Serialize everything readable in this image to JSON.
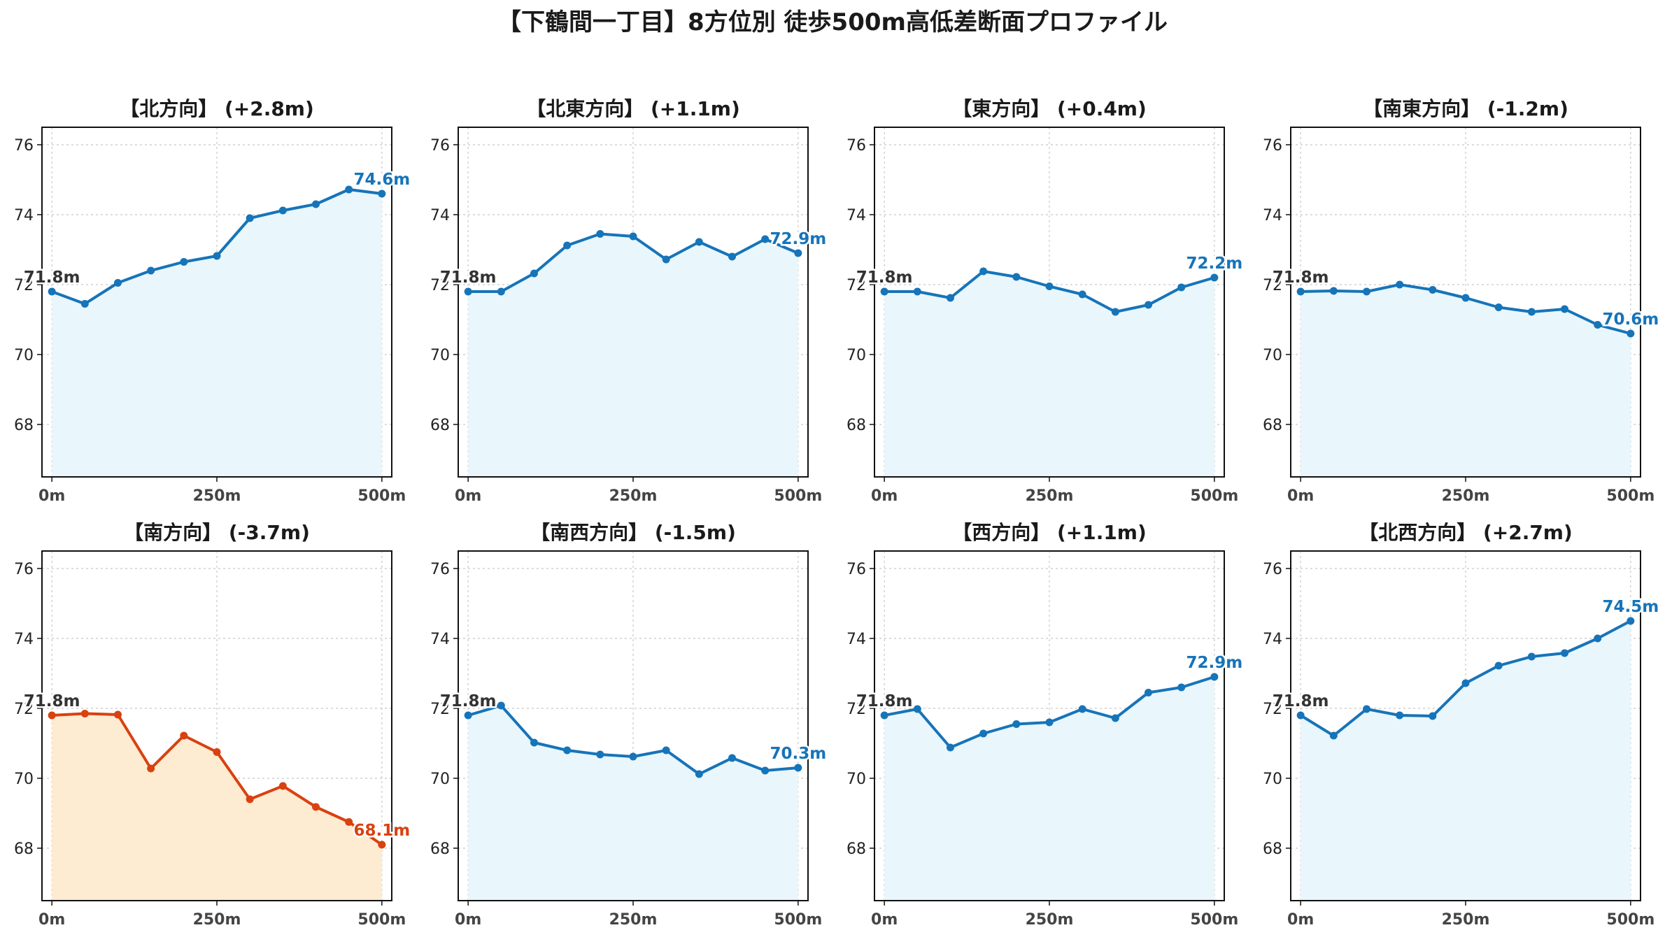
{
  "title": "【下鶴間一丁目】8方位別 徒歩500m高低差断面プロファイル",
  "colors": {
    "up_line": "#1674b9",
    "up_fill": "#e9f6fc",
    "down_line": "#d9410f",
    "down_fill": "#fdebd2",
    "start_label": "#333333",
    "grid": "#c8c8c8"
  },
  "chart_data": {
    "type": "area",
    "layout": "2 rows x 4 columns",
    "grid": true,
    "ylim": [
      66.5,
      76.5
    ],
    "yticks": [
      68,
      70,
      72,
      74,
      76
    ],
    "xlim": [
      -15,
      515
    ],
    "xticks": [
      0,
      250,
      500
    ],
    "xtick_labels": [
      "0m",
      "250m",
      "500m"
    ],
    "x": [
      0,
      50,
      100,
      150,
      200,
      250,
      300,
      350,
      400,
      450,
      500
    ],
    "panels": [
      {
        "title": "【北方向】 (+2.8m)",
        "values": [
          71.8,
          71.45,
          72.05,
          72.4,
          72.65,
          72.82,
          73.9,
          74.12,
          74.3,
          74.72,
          74.6
        ],
        "start_label": "71.8m",
        "end_label": "74.6m",
        "highlight": false
      },
      {
        "title": "【北東方向】 (+1.1m)",
        "values": [
          71.8,
          71.8,
          72.32,
          73.12,
          73.45,
          73.38,
          72.72,
          73.22,
          72.8,
          73.3,
          72.9
        ],
        "start_label": "71.8m",
        "end_label": "72.9m",
        "highlight": false
      },
      {
        "title": "【東方向】 (+0.4m)",
        "values": [
          71.8,
          71.8,
          71.62,
          72.38,
          72.22,
          71.95,
          71.72,
          71.22,
          71.42,
          71.92,
          72.2
        ],
        "start_label": "71.8m",
        "end_label": "72.2m",
        "highlight": false
      },
      {
        "title": "【南東方向】 (-1.2m)",
        "values": [
          71.8,
          71.82,
          71.8,
          72.0,
          71.85,
          71.62,
          71.35,
          71.22,
          71.3,
          70.85,
          70.6
        ],
        "start_label": "71.8m",
        "end_label": "70.6m",
        "highlight": false
      },
      {
        "title": "【南方向】 (-3.7m)",
        "values": [
          71.8,
          71.85,
          71.82,
          70.28,
          71.22,
          70.75,
          69.4,
          69.78,
          69.18,
          68.75,
          68.1
        ],
        "start_label": "71.8m",
        "end_label": "68.1m",
        "highlight": true
      },
      {
        "title": "【南西方向】 (-1.5m)",
        "values": [
          71.8,
          72.08,
          71.02,
          70.8,
          70.68,
          70.62,
          70.8,
          70.12,
          70.58,
          70.22,
          70.3
        ],
        "start_label": "71.8m",
        "end_label": "70.3m",
        "highlight": false
      },
      {
        "title": "【西方向】 (+1.1m)",
        "values": [
          71.8,
          71.98,
          70.88,
          71.28,
          71.55,
          71.6,
          71.98,
          71.72,
          72.45,
          72.6,
          72.9
        ],
        "start_label": "71.8m",
        "end_label": "72.9m",
        "highlight": false
      },
      {
        "title": "【北西方向】 (+2.7m)",
        "values": [
          71.8,
          71.22,
          71.98,
          71.8,
          71.78,
          72.72,
          73.22,
          73.48,
          73.58,
          74.0,
          74.5
        ],
        "start_label": "71.8m",
        "end_label": "74.5m",
        "highlight": false
      }
    ]
  }
}
